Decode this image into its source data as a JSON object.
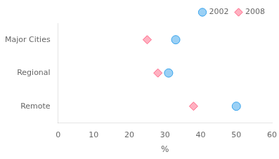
{
  "chart_data": {
    "type": "dot",
    "categories": [
      "Major Cities",
      "Regional",
      "Remote"
    ],
    "series": [
      {
        "name": "2002",
        "marker": "circle",
        "values": [
          33,
          31,
          50
        ]
      },
      {
        "name": "2008",
        "marker": "diamond",
        "values": [
          25,
          28,
          38
        ]
      }
    ],
    "xlabel": "%",
    "xlim": [
      0,
      60
    ],
    "xticks": [
      0,
      10,
      20,
      30,
      40,
      50,
      60
    ],
    "grid": false,
    "legend": "upper right"
  }
}
